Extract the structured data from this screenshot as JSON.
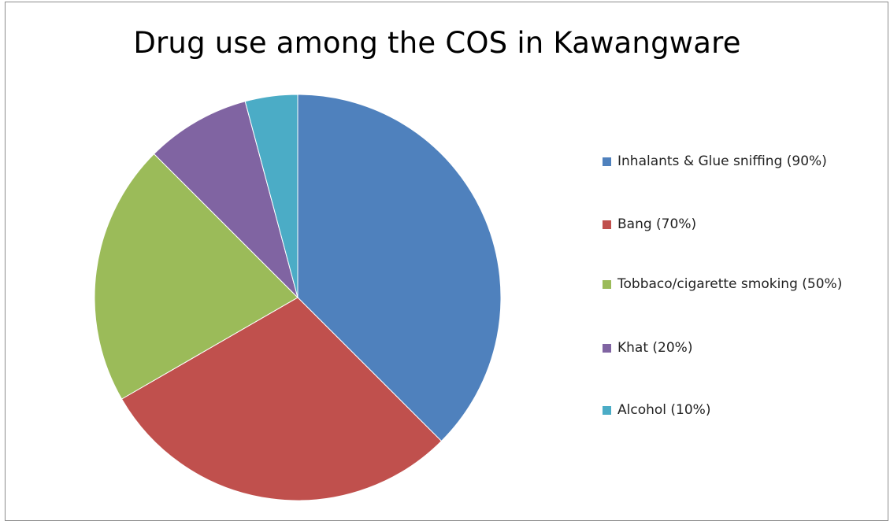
{
  "chart_data": {
    "type": "pie",
    "title": "Drug use among the COS in Kawangware",
    "categories": [
      "Inhalants & Glue sniffing (90%)",
      "Bang (70%)",
      "Tobbaco/cigarette smoking (50%)",
      "Khat (20%)",
      "Alcohol (10%)"
    ],
    "values": [
      90,
      70,
      50,
      20,
      10
    ],
    "colors": [
      "#4f81bd",
      "#c0504d",
      "#9bbb59",
      "#8064a2",
      "#4bacc6"
    ],
    "legend_position": "right",
    "start_angle": "top",
    "direction": "clockwise"
  }
}
